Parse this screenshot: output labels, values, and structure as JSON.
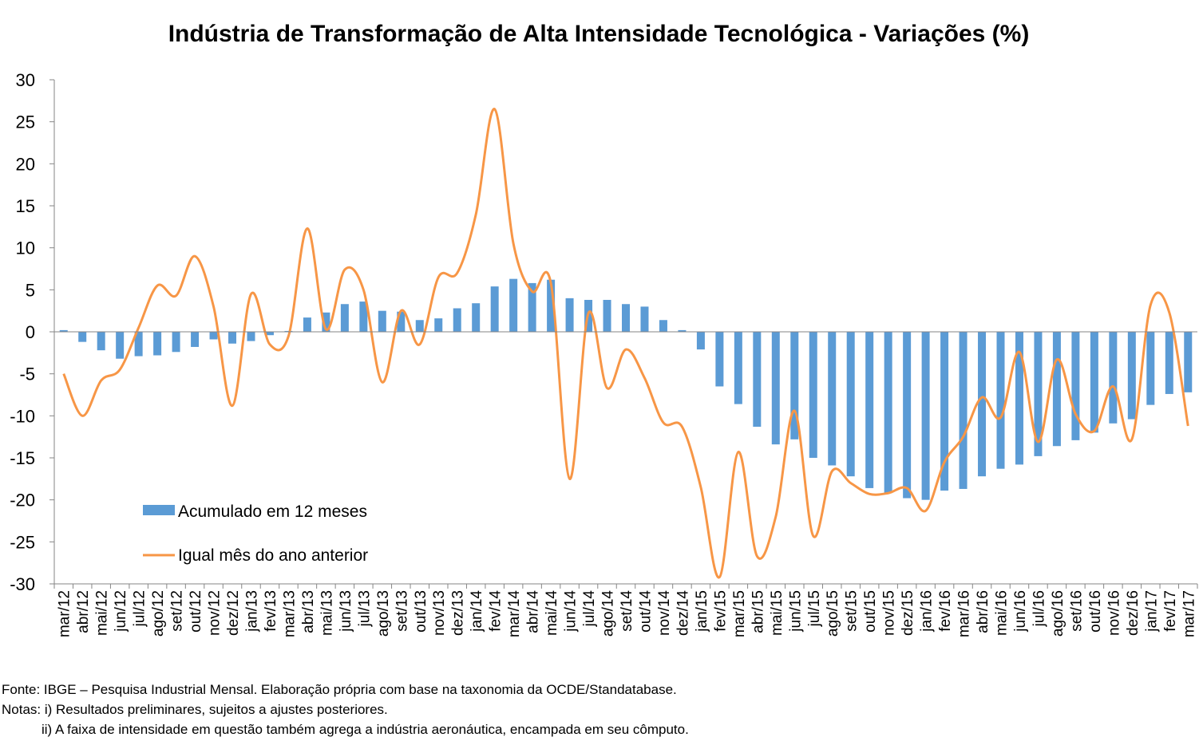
{
  "chart_data": {
    "type": "bar+line",
    "title": "Indústria de Transformação de Alta Intensidade Tecnológica - Variações (%)",
    "xlabel": "",
    "ylabel": "",
    "ylim": [
      -30,
      30
    ],
    "yticks": [
      30,
      25,
      20,
      15,
      10,
      5,
      0,
      -5,
      -10,
      -15,
      -20,
      -25,
      -30
    ],
    "grid": false,
    "legend_position": "bottom-left",
    "categories": [
      "mar/12",
      "abr/12",
      "mai/12",
      "jun/12",
      "jul/12",
      "ago/12",
      "set/12",
      "out/12",
      "nov/12",
      "dez/12",
      "jan/13",
      "fev/13",
      "mar/13",
      "abr/13",
      "mai/13",
      "jun/13",
      "jul/13",
      "ago/13",
      "set/13",
      "out/13",
      "nov/13",
      "dez/13",
      "jan/14",
      "fev/14",
      "mar/14",
      "abr/14",
      "mai/14",
      "jun/14",
      "jul/14",
      "ago/14",
      "set/14",
      "out/14",
      "nov/14",
      "dez/14",
      "jan/15",
      "fev/15",
      "mar/15",
      "abr/15",
      "mai/15",
      "jun/15",
      "jul/15",
      "ago/15",
      "set/15",
      "out/15",
      "nov/15",
      "dez/15",
      "jan/16",
      "fev/16",
      "mar/16",
      "abr/16",
      "mai/16",
      "jun/16",
      "jul/16",
      "ago/16",
      "set/16",
      "out/16",
      "nov/16",
      "dez/16",
      "jan/17",
      "fev/17",
      "mar/17"
    ],
    "series": [
      {
        "name": "Acumulado em 12 meses",
        "type": "bar",
        "color": "#5B9BD5",
        "values": [
          0.2,
          -1.2,
          -2.2,
          -3.2,
          -2.9,
          -2.8,
          -2.4,
          -1.8,
          -0.9,
          -1.4,
          -1.1,
          -0.4,
          0.1,
          1.7,
          2.3,
          3.3,
          3.6,
          2.5,
          2.4,
          1.4,
          1.6,
          2.8,
          3.4,
          5.4,
          6.3,
          5.8,
          6.2,
          4.0,
          3.8,
          3.8,
          3.3,
          3.0,
          1.4,
          0.2,
          -2.1,
          -6.5,
          -8.6,
          -11.3,
          -13.4,
          -12.8,
          -15.0,
          -15.9,
          -17.2,
          -18.6,
          -19.2,
          -19.8,
          -20.0,
          -18.9,
          -18.7,
          -17.2,
          -16.3,
          -15.8,
          -14.8,
          -13.6,
          -12.9,
          -12.0,
          -10.9,
          -10.4,
          -8.7,
          -7.4,
          -7.2
        ]
      },
      {
        "name": "Igual mês do ano anterior",
        "type": "line",
        "color": "#F79646",
        "values": [
          -5.0,
          -10.0,
          -5.8,
          -4.5,
          0.5,
          5.5,
          4.3,
          9.0,
          3.0,
          -8.8,
          4.5,
          -1.5,
          -0.5,
          12.3,
          0.3,
          7.4,
          5.0,
          -6.0,
          2.5,
          -1.5,
          6.5,
          7.0,
          14.0,
          26.5,
          10.5,
          4.8,
          5.8,
          -17.5,
          2.2,
          -6.7,
          -2.1,
          -5.5,
          -10.8,
          -11.3,
          -18.5,
          -29.2,
          -14.3,
          -26.7,
          -22.0,
          -9.4,
          -24.3,
          -16.6,
          -18.0,
          -19.3,
          -19.2,
          -18.6,
          -21.3,
          -15.5,
          -12.5,
          -7.8,
          -10.2,
          -2.4,
          -13.1,
          -3.3,
          -9.8,
          -11.8,
          -6.5,
          -12.8,
          3.2,
          2.3,
          -11.2
        ]
      }
    ]
  },
  "notes": {
    "source": "Fonte: IBGE – Pesquisa Industrial Mensal. Elaboração própria com base na taxonomia da OCDE/Standatabase.",
    "note1": "Notas: i) Resultados preliminares, sujeitos a ajustes posteriores.",
    "note2": "ii) A faixa de intensidade em questão também agrega a indústria aeronáutica, encampada em seu cômputo."
  }
}
